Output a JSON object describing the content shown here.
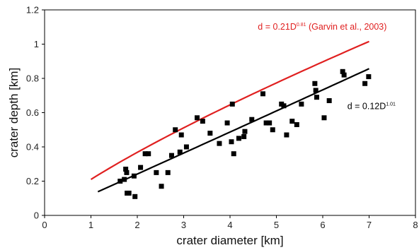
{
  "chart_data": {
    "type": "scatter",
    "xlabel": "crater diameter [km]",
    "ylabel": "crater depth [km]",
    "xlim": [
      0,
      8
    ],
    "ylim": [
      0,
      1.2
    ],
    "x_ticks": [
      "0",
      "1",
      "2",
      "3",
      "4",
      "5",
      "6",
      "7",
      "8"
    ],
    "y_ticks": [
      "0",
      "0.2",
      "0.4",
      "0.6",
      "0.8",
      "1",
      "1.2"
    ],
    "grid": false,
    "legend": "none",
    "series": [
      {
        "marker": "square",
        "color": "#000000",
        "points": [
          [
            1.63,
            0.2
          ],
          [
            1.72,
            0.21
          ],
          [
            1.75,
            0.27
          ],
          [
            1.77,
            0.25
          ],
          [
            1.78,
            0.13
          ],
          [
            1.82,
            0.13
          ],
          [
            1.93,
            0.23
          ],
          [
            1.95,
            0.11
          ],
          [
            2.07,
            0.28
          ],
          [
            2.17,
            0.36
          ],
          [
            2.24,
            0.36
          ],
          [
            2.41,
            0.25
          ],
          [
            2.52,
            0.17
          ],
          [
            2.66,
            0.25
          ],
          [
            2.74,
            0.35
          ],
          [
            2.82,
            0.5
          ],
          [
            2.92,
            0.37
          ],
          [
            2.95,
            0.47
          ],
          [
            3.06,
            0.4
          ],
          [
            3.29,
            0.57
          ],
          [
            3.41,
            0.55
          ],
          [
            3.57,
            0.48
          ],
          [
            3.77,
            0.42
          ],
          [
            3.94,
            0.54
          ],
          [
            4.03,
            0.43
          ],
          [
            4.05,
            0.65
          ],
          [
            4.08,
            0.36
          ],
          [
            4.19,
            0.45
          ],
          [
            4.3,
            0.46
          ],
          [
            4.32,
            0.49
          ],
          [
            4.47,
            0.56
          ],
          [
            4.71,
            0.71
          ],
          [
            4.78,
            0.54
          ],
          [
            4.85,
            0.54
          ],
          [
            4.92,
            0.5
          ],
          [
            5.11,
            0.65
          ],
          [
            5.16,
            0.64
          ],
          [
            5.22,
            0.47
          ],
          [
            5.34,
            0.55
          ],
          [
            5.44,
            0.53
          ],
          [
            5.54,
            0.65
          ],
          [
            5.83,
            0.77
          ],
          [
            5.85,
            0.73
          ],
          [
            5.87,
            0.69
          ],
          [
            6.03,
            0.57
          ],
          [
            6.14,
            0.67
          ],
          [
            6.43,
            0.84
          ],
          [
            6.46,
            0.82
          ],
          [
            6.91,
            0.77
          ],
          [
            6.99,
            0.81
          ]
        ]
      }
    ],
    "fits": [
      {
        "color": "#e02020",
        "coefficient": 0.21,
        "exponent": 0.81,
        "x_range": [
          1.0,
          7.0
        ],
        "label_prefix": "d = 0.21D",
        "label_exp": "0.81",
        "label_suffix": " (Garvin et al., 2003)",
        "label_anchor": [
          4.6,
          1.085
        ]
      },
      {
        "color": "#000000",
        "coefficient": 0.12,
        "exponent": 1.01,
        "x_range": [
          1.15,
          7.0
        ],
        "label_prefix": "d = 0.12D",
        "label_exp": "1.01",
        "label_suffix": "",
        "label_anchor": [
          6.53,
          0.62
        ]
      }
    ]
  }
}
